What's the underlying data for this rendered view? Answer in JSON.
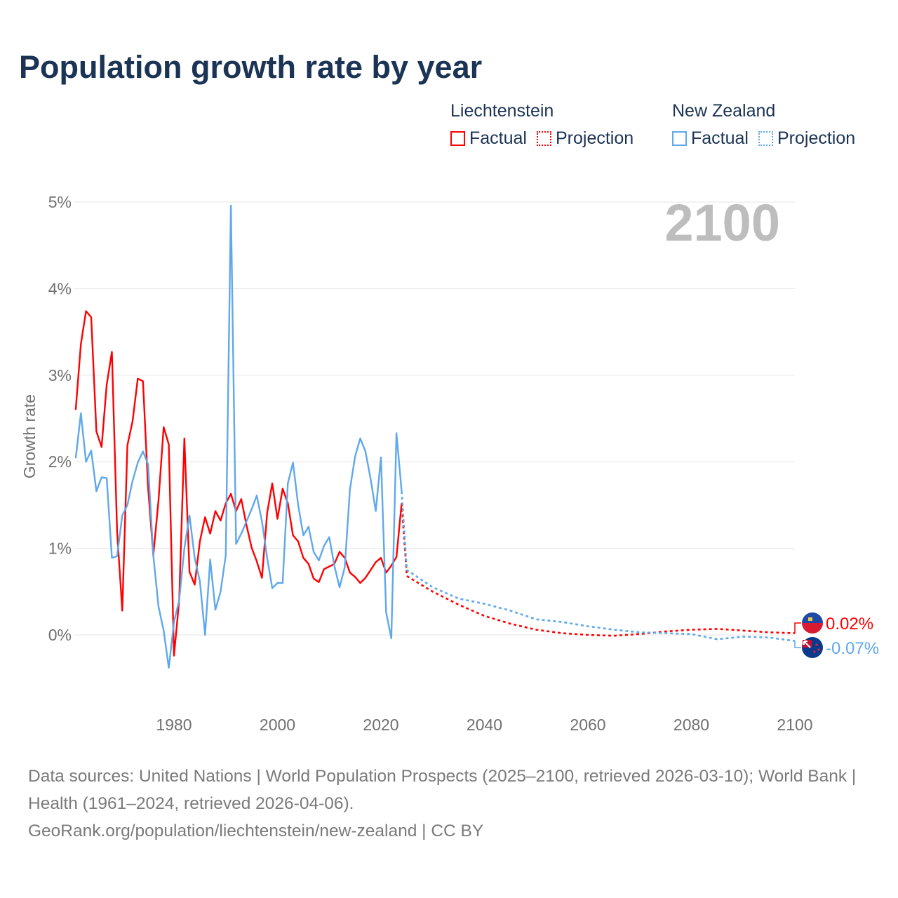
{
  "title": "Population growth rate by year",
  "legend": [
    {
      "name": "Liechtenstein",
      "factual": "Factual",
      "projection": "Projection",
      "color": "#ff0000"
    },
    {
      "name": "New Zealand",
      "factual": "Factual",
      "projection": "Projection",
      "color": "#5fa8ec"
    }
  ],
  "footer": {
    "sources": "Data sources: United Nations | World Population Prospects (2025–2100, retrieved 2026-03-10); World Bank | Health (1961–2024, retrieved 2026-04-06).",
    "link": "GeoRank.org/population/liechtenstein/new-zealand | CC BY"
  },
  "chart_data": {
    "type": "line",
    "title": "Population growth rate by year",
    "xlabel": "",
    "ylabel": "Growth rate",
    "year_overlay": "2100",
    "xlim": [
      1961,
      2100
    ],
    "ylim": [
      -0.5,
      5
    ],
    "x_ticks": [
      1980,
      2000,
      2020,
      2040,
      2060,
      2080,
      2100
    ],
    "y_ticks": [
      0,
      1,
      2,
      3,
      4,
      5
    ],
    "y_tick_labels": [
      "0%",
      "1%",
      "2%",
      "3%",
      "4%",
      "5%"
    ],
    "grid": true,
    "legend_position": "top-right",
    "series": [
      {
        "name": "Liechtenstein",
        "color": "#ff0000",
        "end_label": "0.02%",
        "factual": {
          "start_year": 1961,
          "values": [
            2.6,
            3.36,
            3.74,
            3.67,
            2.35,
            2.17,
            2.89,
            3.27,
            1.2,
            0.28,
            2.19,
            2.47,
            2.96,
            2.93,
            1.7,
            0.92,
            1.55,
            2.4,
            2.2,
            -0.24,
            0.4,
            2.27,
            0.73,
            0.58,
            1.08,
            1.36,
            1.17,
            1.43,
            1.32,
            1.52,
            1.63,
            1.43,
            1.57,
            1.27,
            1.01,
            0.85,
            0.66,
            1.41,
            1.75,
            1.34,
            1.69,
            1.52,
            1.15,
            1.08,
            0.89,
            0.82,
            0.65,
            0.61,
            0.76,
            0.79,
            0.82,
            0.96,
            0.89,
            0.72,
            0.67,
            0.6,
            0.66,
            0.75,
            0.84,
            0.89,
            0.72,
            0.8,
            0.9,
            1.52
          ]
        },
        "projection": {
          "years": [
            2024,
            2025,
            2030,
            2035,
            2040,
            2045,
            2050,
            2055,
            2060,
            2065,
            2070,
            2075,
            2080,
            2085,
            2090,
            2095,
            2100
          ],
          "values": [
            1.52,
            0.68,
            0.5,
            0.35,
            0.22,
            0.13,
            0.06,
            0.02,
            0.0,
            -0.01,
            0.01,
            0.04,
            0.06,
            0.07,
            0.05,
            0.03,
            0.02
          ]
        }
      },
      {
        "name": "New Zealand",
        "color": "#5fa8ec",
        "end_label": "-0.07%",
        "factual": {
          "start_year": 1961,
          "values": [
            2.04,
            2.56,
            2.0,
            2.13,
            1.66,
            1.82,
            1.81,
            0.89,
            0.91,
            1.38,
            1.5,
            1.78,
            1.99,
            2.12,
            1.97,
            0.92,
            0.33,
            0.05,
            -0.38,
            0.15,
            0.4,
            1.0,
            1.38,
            0.89,
            0.62,
            0.0,
            0.87,
            0.29,
            0.5,
            0.92,
            4.96,
            1.05,
            1.17,
            1.31,
            1.45,
            1.61,
            1.31,
            0.89,
            0.54,
            0.6,
            0.6,
            1.75,
            1.99,
            1.5,
            1.15,
            1.25,
            0.96,
            0.86,
            1.03,
            1.13,
            0.8,
            0.55,
            0.78,
            1.68,
            2.06,
            2.27,
            2.12,
            1.8,
            1.43,
            2.05,
            0.26,
            -0.04,
            2.33,
            1.66
          ]
        },
        "projection": {
          "years": [
            2024,
            2025,
            2030,
            2035,
            2040,
            2045,
            2050,
            2055,
            2060,
            2065,
            2070,
            2075,
            2080,
            2085,
            2090,
            2095,
            2100
          ],
          "values": [
            1.66,
            0.75,
            0.55,
            0.42,
            0.36,
            0.28,
            0.18,
            0.15,
            0.1,
            0.06,
            0.03,
            0.02,
            0.01,
            -0.05,
            -0.02,
            -0.03,
            -0.07
          ]
        }
      }
    ]
  }
}
